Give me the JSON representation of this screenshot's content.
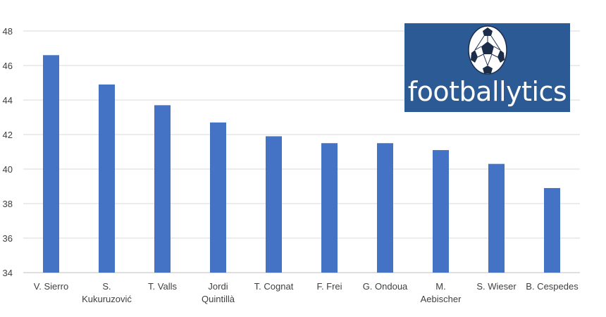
{
  "logo": {
    "text": "footballytics",
    "icon": "soccer-ball-icon",
    "background": "#2b5a94"
  },
  "chart_data": {
    "type": "bar",
    "title": "",
    "xlabel": "",
    "ylabel": "",
    "categories": [
      [
        "V. Sierro"
      ],
      [
        "S.",
        "Kukuruzović"
      ],
      [
        "T. Valls"
      ],
      [
        "Jordi",
        "Quintillà"
      ],
      [
        "T. Cognat"
      ],
      [
        "F. Frei"
      ],
      [
        "G. Ondoua"
      ],
      [
        "M.",
        "Aebischer"
      ],
      [
        "S. Wieser"
      ],
      [
        "B. Cespedes"
      ]
    ],
    "series": [
      {
        "values": [
          46.6,
          44.9,
          43.7,
          42.7,
          41.9,
          41.5,
          41.5,
          41.1,
          40.3,
          38.9
        ],
        "color": "#4472c4"
      }
    ],
    "ylim": [
      34,
      48
    ],
    "yticks": [
      34,
      36,
      38,
      40,
      42,
      44,
      46,
      48
    ],
    "grid": true,
    "legend": "none"
  }
}
